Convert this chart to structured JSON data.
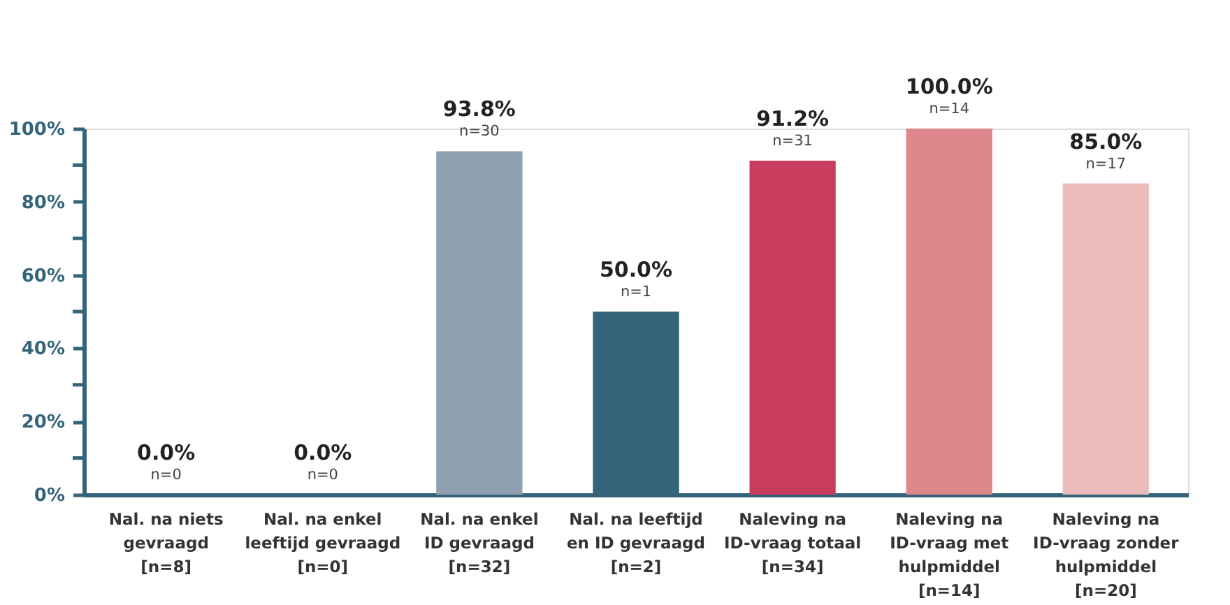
{
  "chart_data": {
    "type": "bar",
    "categories": [
      "Nal. na niets\ngevraagd\n[n=8]",
      "Nal. na enkel\nleeftijd gevraagd\n[n=0]",
      "Nal. na enkel\nID gevraagd\n[n=32]",
      "Nal. na leeftijd\nen ID gevraagd\n[n=2]",
      "Naleving na\nID-vraag totaal\n[n=34]",
      "Naleving na\nID-vraag met\nhulpmiddel\n[n=14]",
      "Naleving na\nID-vraag zonder\nhulpmiddel\n[n=20]"
    ],
    "values": [
      0.0,
      0.0,
      93.8,
      50.0,
      91.2,
      100.0,
      85.0
    ],
    "colors": [
      "#8fa0b0",
      "#8fa0b0",
      "#8fa0b0",
      "#336479",
      "#c83c5e",
      "#db878c",
      "#ebbcbc"
    ],
    "value_labels": [
      "0.0%\nn=0",
      "0.0%\nn=0",
      "93.8%\nn=30",
      "50.0%\nn=1",
      "91.2%\nn=31",
      "100.0%\nn=14",
      "85.0%\nn=17"
    ],
    "ylim": [
      0,
      100
    ],
    "yticks": [
      {
        "value": 0,
        "label": "0%"
      },
      {
        "value": 10,
        "label": null
      },
      {
        "value": 20,
        "label": "20%"
      },
      {
        "value": 30,
        "label": null
      },
      {
        "value": 40,
        "label": "40%"
      },
      {
        "value": 50,
        "label": null
      },
      {
        "value": 60,
        "label": "60%"
      },
      {
        "value": 70,
        "label": null
      },
      {
        "value": 80,
        "label": "80%"
      },
      {
        "value": 90,
        "label": null
      },
      {
        "value": 100,
        "label": "100%"
      }
    ],
    "grid": false
  }
}
